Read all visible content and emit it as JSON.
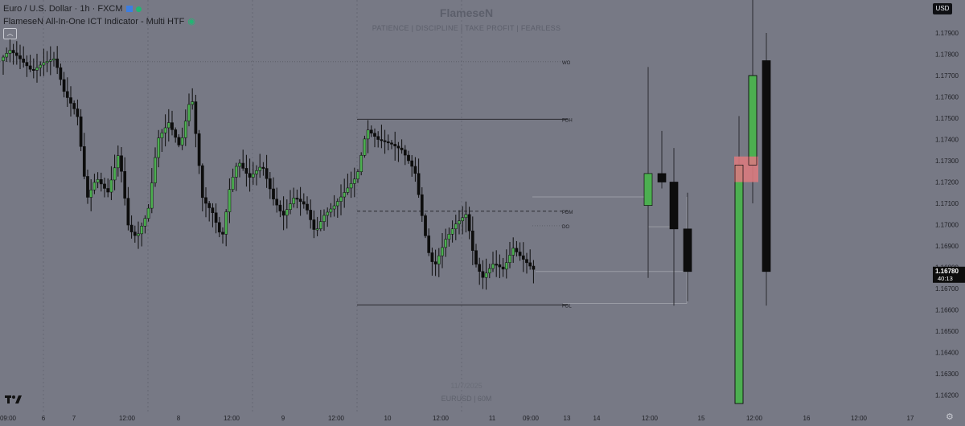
{
  "legend": {
    "symbol": "Euro / U.S. Dollar · 1h · FXCM",
    "indicator": "FlameseN All-In-One ICT Indicator - Multi HTF"
  },
  "watermark": {
    "title": "FlameseN",
    "subtitle": "PATIENCE | DISCIPLINE | TAKE PROFIT | FEARLESS",
    "date": "11/7/2025",
    "symbol_tf": "EURUSD | 60M"
  },
  "currency": "USD",
  "price_axis": {
    "ticks": [
      "1.17900",
      "1.17800",
      "1.17700",
      "1.17600",
      "1.17500",
      "1.17400",
      "1.17300",
      "1.17200",
      "1.17100",
      "1.17000",
      "1.16900",
      "1.16800",
      "1.16700",
      "1.16600",
      "1.16500",
      "1.16400",
      "1.16300",
      "1.16200"
    ],
    "current_price": "1.16780",
    "countdown": "40:13"
  },
  "time_axis": [
    "09:00",
    "6",
    "7",
    "12:00",
    "8",
    "12:00",
    "9",
    "12:00",
    "10",
    "12:00",
    "11",
    "09:00",
    "13",
    "14",
    "12:00",
    "15",
    "12:00",
    "16",
    "12:00",
    "17"
  ],
  "levels": [
    {
      "label": "WO",
      "price": 1.17765
    },
    {
      "label": "PDH",
      "price": 1.17495
    },
    {
      "label": "PDM",
      "price": 1.17063
    },
    {
      "label": "DO",
      "price": 1.16995
    },
    {
      "label": "PDL",
      "price": 1.16623
    }
  ],
  "colors": {
    "background": "#777985",
    "bull": "#4caf50",
    "bear": "#0d0d0d",
    "fvg": "#d87a7e",
    "watermark": "#5c5f6b"
  },
  "chart_data": {
    "type": "candlestick",
    "symbol": "EURUSD",
    "timeframe": "1h",
    "current_price": 1.1678,
    "ylim": [
      1.1615,
      1.1797
    ],
    "htf_candles": [
      {
        "o": 1.1709,
        "h": 1.1774,
        "l": 1.1675,
        "c": 1.1724
      },
      {
        "o": 1.1724,
        "h": 1.1744,
        "l": 1.1717,
        "c": 1.172
      },
      {
        "o": 1.172,
        "h": 1.1736,
        "l": 1.1662,
        "c": 1.1698
      },
      {
        "o": 1.1698,
        "h": 1.1715,
        "l": 1.1664,
        "c": 1.1678
      },
      {
        "o": 1.1616,
        "h": 1.1751,
        "l": 1.1616,
        "c": 1.1728
      },
      {
        "o": 1.1728,
        "h": 1.181,
        "l": 1.171,
        "c": 1.177
      },
      {
        "o": 1.1777,
        "h": 1.179,
        "l": 1.1662,
        "c": 1.1678
      }
    ]
  }
}
